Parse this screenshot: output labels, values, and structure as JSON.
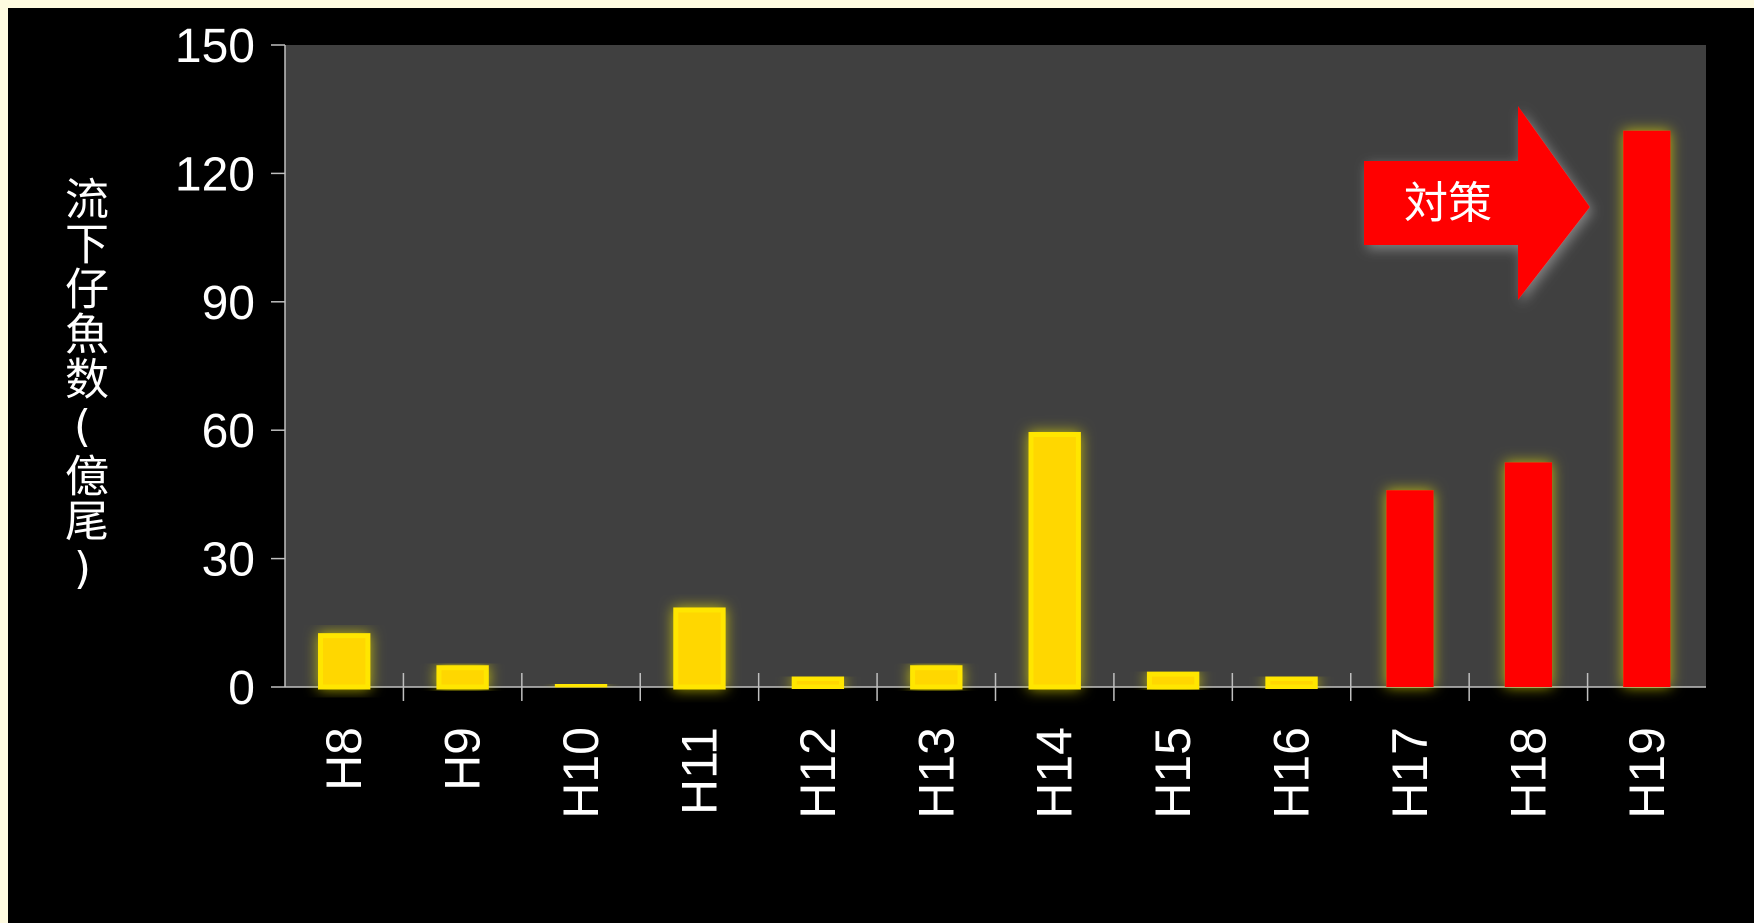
{
  "chart_data": {
    "type": "bar",
    "categories": [
      "H8",
      "H9",
      "H10",
      "H11",
      "H12",
      "H13",
      "H14",
      "H15",
      "H16",
      "H17",
      "H18",
      "H19"
    ],
    "values": [
      12,
      4.5,
      0.5,
      18,
      2,
      4.5,
      59,
      3,
      2,
      46,
      52.5,
      130
    ],
    "bar_colors": [
      "#ffd700",
      "#ffd700",
      "#ffd700",
      "#ffd700",
      "#ffd700",
      "#ffd700",
      "#ffd700",
      "#ffd700",
      "#ffd700",
      "#ff0000",
      "#ff0000",
      "#ff0000"
    ],
    "ylabel": "流下仔魚数(億尾)",
    "xlabel": "",
    "ylim": [
      0,
      150
    ],
    "yticks": [
      0,
      30,
      60,
      90,
      120,
      150
    ],
    "annotation": "対策",
    "grid": false,
    "plot_background": "#404040"
  }
}
